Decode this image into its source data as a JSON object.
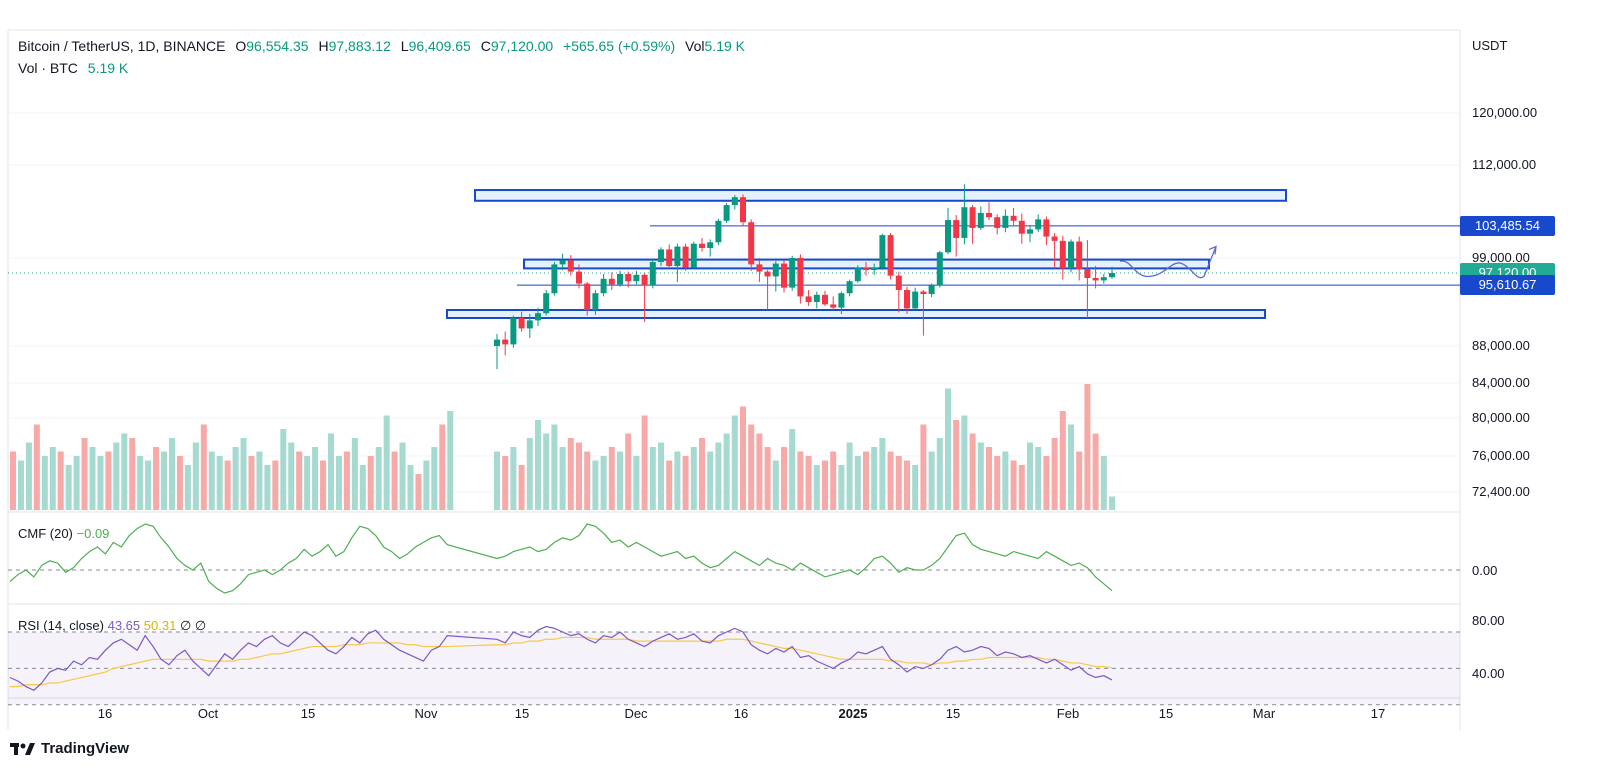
{
  "header": {
    "symbol": "Bitcoin / TetherUS, 1D, BINANCE",
    "open_label": "O",
    "open": "96,554.35",
    "high_label": "H",
    "high": "97,883.12",
    "low_label": "L",
    "low": "96,409.65",
    "close_label": "C",
    "close": "97,120.00",
    "change": "+565.65 (+0.59%)",
    "vol_label": "Vol",
    "vol": "5.19 K",
    "vol_btc_label": "Vol · BTC",
    "vol_btc": "5.19 K"
  },
  "currency": "USDT",
  "brand": "TradingView",
  "price_axis": [
    "120,000.00",
    "112,000.00",
    "99,000.00",
    "88,000.00",
    "84,000.00",
    "80,000.00",
    "76,000.00",
    "72,400.00"
  ],
  "price_tags": [
    {
      "value": "103,485.54",
      "color": "#1848cc"
    },
    {
      "value": "97,120.00",
      "color": "#22ab94"
    },
    {
      "value": "95,610.67",
      "color": "#1848cc"
    }
  ],
  "cmf": {
    "label": "CMF (20)",
    "value": "−0.09",
    "axis": "0.00"
  },
  "rsi": {
    "label": "RSI (14, close)",
    "value": "43.65",
    "ma": "50.31",
    "na1": "∅",
    "na2": "∅",
    "axis_hi": "80.00",
    "axis_lo": "40.00"
  },
  "x_axis": [
    "16",
    "Oct",
    "15",
    "Nov",
    "15",
    "Dec",
    "16",
    "2025",
    "15",
    "Feb",
    "15",
    "Mar",
    "17"
  ],
  "colors": {
    "up": "#089981",
    "down": "#f23645",
    "box": "#1848cc",
    "rsi": "#7e57c2",
    "rsi_ma": "#f7c948",
    "cmf": "#4caf50"
  },
  "chart_data": [
    {
      "type": "candlestick",
      "title": "Bitcoin / TetherUS, 1D, BINANCE",
      "ylabel": "USDT",
      "y_ticks": [
        120000,
        112000,
        99000,
        88000,
        84000,
        80000,
        76000,
        72400
      ],
      "last_close": 97120,
      "horizontal_lines": [
        103485.54,
        95610.67
      ],
      "zones": [
        {
          "low": 107000,
          "high": 108500
        },
        {
          "low": 97700,
          "high": 98800
        },
        {
          "low": 91500,
          "high": 92500
        }
      ],
      "candles_ohlc": [
        [
          88000,
          89500,
          85500,
          88800
        ],
        [
          88800,
          89800,
          87000,
          88200
        ],
        [
          88200,
          91800,
          87800,
          91500
        ],
        [
          91500,
          92300,
          89800,
          90200
        ],
        [
          90200,
          92000,
          89000,
          91200
        ],
        [
          91200,
          92800,
          90500,
          92100
        ],
        [
          92100,
          95000,
          91800,
          94600
        ],
        [
          94600,
          98500,
          94300,
          98200
        ],
        [
          98200,
          99600,
          97500,
          98700
        ],
        [
          98700,
          99400,
          96800,
          97300
        ],
        [
          97300,
          98200,
          95200,
          95800
        ],
        [
          95800,
          96000,
          91800,
          92500
        ],
        [
          92500,
          95000,
          91900,
          94600
        ],
        [
          94600,
          97000,
          94200,
          96400
        ],
        [
          96400,
          97200,
          95000,
          95700
        ],
        [
          95700,
          97400,
          95400,
          97000
        ],
        [
          97000,
          97300,
          95300,
          96100
        ],
        [
          96100,
          97400,
          95700,
          96900
        ],
        [
          96900,
          97100,
          91000,
          95600
        ],
        [
          95600,
          98800,
          95200,
          98500
        ],
        [
          98500,
          100500,
          98000,
          100200
        ],
        [
          100200,
          100900,
          97700,
          98000
        ],
        [
          98000,
          101000,
          96000,
          100600
        ],
        [
          100600,
          101000,
          97400,
          97800
        ],
        [
          97800,
          101300,
          97600,
          101000
        ],
        [
          101000,
          101800,
          99900,
          100400
        ],
        [
          100400,
          101600,
          99200,
          101200
        ],
        [
          101200,
          104500,
          100800,
          104200
        ],
        [
          104200,
          106700,
          103900,
          106400
        ],
        [
          106400,
          107800,
          105800,
          107500
        ],
        [
          107500,
          107900,
          103500,
          104000
        ],
        [
          104000,
          104400,
          97400,
          98200
        ],
        [
          98200,
          99000,
          96000,
          97300
        ],
        [
          97300,
          97500,
          92500,
          96700
        ],
        [
          96700,
          98600,
          94800,
          98300
        ],
        [
          98300,
          98700,
          94700,
          95300
        ],
        [
          95300,
          99300,
          94900,
          99000
        ],
        [
          99000,
          99500,
          93300,
          94200
        ],
        [
          94200,
          95000,
          93000,
          93500
        ],
        [
          93500,
          94800,
          92700,
          94400
        ],
        [
          94400,
          94900,
          93000,
          93200
        ],
        [
          93200,
          94200,
          92500,
          92800
        ],
        [
          92800,
          94800,
          92000,
          94600
        ],
        [
          94600,
          96300,
          94200,
          96100
        ],
        [
          96100,
          98100,
          95900,
          97800
        ],
        [
          97800,
          98500,
          96800,
          97500
        ],
        [
          97500,
          98300,
          96900,
          97800
        ],
        [
          97800,
          102400,
          97500,
          102200
        ],
        [
          102200,
          102500,
          96300,
          96800
        ],
        [
          96800,
          97300,
          92200,
          95000
        ],
        [
          95000,
          95400,
          92000,
          92700
        ],
        [
          92700,
          95300,
          92500,
          94800
        ],
        [
          94800,
          95000,
          89300,
          94500
        ],
        [
          94500,
          95800,
          94100,
          95600
        ],
        [
          95600,
          100000,
          95300,
          99800
        ],
        [
          99800,
          106000,
          99500,
          104300
        ],
        [
          104300,
          105000,
          99200,
          101800
        ],
        [
          101800,
          109300,
          100900,
          106100
        ],
        [
          106100,
          106400,
          101000,
          103200
        ],
        [
          103200,
          106200,
          102900,
          105300
        ],
        [
          105300,
          106800,
          104300,
          104700
        ],
        [
          104700,
          105100,
          102300,
          103200
        ],
        [
          103200,
          105800,
          102600,
          104900
        ],
        [
          104900,
          106000,
          103400,
          104200
        ],
        [
          104200,
          105200,
          101000,
          102400
        ],
        [
          102400,
          103600,
          101200,
          103000
        ],
        [
          103000,
          105100,
          102600,
          104400
        ],
        [
          104400,
          104800,
          100800,
          102000
        ],
        [
          102000,
          102500,
          97700,
          101400
        ],
        [
          101400,
          102100,
          96300,
          97700
        ],
        [
          97700,
          101600,
          97200,
          101300
        ],
        [
          101300,
          102000,
          96200,
          97600
        ],
        [
          97600,
          101500,
          91500,
          96500
        ],
        [
          96500,
          98000,
          95200,
          96200
        ],
        [
          96200,
          97000,
          95800,
          96600
        ],
        [
          96600,
          97900,
          96400,
          97120
        ]
      ],
      "volume": [
        1.3,
        1.2,
        1.4,
        1.0,
        1.6,
        2.0,
        1.7,
        1.9,
        1.4,
        1.6,
        1.5,
        1.3,
        1.1,
        1.2,
        1.4,
        1.3,
        1.7,
        1.2,
        2.1,
        1.4,
        1.5,
        1.1,
        1.3,
        1.2,
        1.4,
        1.6,
        1.3,
        1.5,
        1.7,
        2.1,
        2.3,
        1.9,
        1.7,
        1.4,
        1.1,
        1.4,
        1.8,
        1.3,
        1.2,
        1.0,
        1.1,
        1.3,
        1.0,
        1.5,
        1.2,
        1.3,
        1.4,
        1.6,
        1.3,
        1.2,
        1.1,
        1.0,
        1.9,
        1.3,
        1.6,
        2.7,
        2.0,
        2.1,
        1.7,
        1.5,
        1.4,
        1.2,
        1.3,
        1.1,
        1.0,
        1.5,
        1.4,
        1.2,
        1.6,
        2.2,
        1.9,
        1.3,
        2.8,
        1.7,
        1.2,
        0.3
      ],
      "cmf_values": [
        0.05,
        0.06,
        0.08,
        0.09,
        0.1,
        0.08,
        0.09,
        0.12,
        0.14,
        0.13,
        0.15,
        0.2,
        0.19,
        0.16,
        0.12,
        0.13,
        0.1,
        0.12,
        0.1,
        0.08,
        0.06,
        0.07,
        0.08,
        0.05,
        0.06,
        0.03,
        0.01,
        0.02,
        0.05,
        0.08,
        0.06,
        0.04,
        0.02,
        0.05,
        0.03,
        0.02,
        0.0,
        0.03,
        0.01,
        -0.01,
        -0.03,
        -0.02,
        -0.01,
        0.0,
        -0.02,
        0.01,
        0.05,
        0.06,
        0.03,
        -0.01,
        0.01,
        0.0,
        0.0,
        0.02,
        0.05,
        0.1,
        0.15,
        0.16,
        0.11,
        0.09,
        0.08,
        0.07,
        0.06,
        0.08,
        0.07,
        0.06,
        0.05,
        0.08,
        0.06,
        0.04,
        0.02,
        0.03,
        0.01,
        -0.03,
        -0.06,
        -0.09
      ],
      "rsi_values": [
        66,
        64,
        70,
        68,
        67,
        71,
        73,
        72,
        70,
        68,
        69,
        66,
        64,
        68,
        67,
        70,
        66,
        64,
        62,
        65,
        67,
        69,
        66,
        67,
        69,
        65,
        64,
        68,
        70,
        72,
        70,
        63,
        60,
        58,
        61,
        59,
        62,
        56,
        57,
        54,
        52,
        50,
        53,
        55,
        59,
        58,
        60,
        62,
        55,
        52,
        48,
        51,
        50,
        52,
        55,
        60,
        62,
        59,
        60,
        62,
        61,
        57,
        59,
        58,
        56,
        57,
        55,
        53,
        55,
        52,
        49,
        51,
        47,
        45,
        46,
        43.65
      ],
      "rsi_ma_values": [
        63,
        63,
        64,
        64,
        65,
        65,
        66,
        66,
        67,
        67,
        67,
        67,
        66,
        66,
        66,
        66,
        66,
        65,
        65,
        65,
        65,
        65,
        65,
        65,
        65,
        65,
        65,
        65,
        66,
        66,
        66,
        65,
        64,
        63,
        62,
        61,
        61,
        60,
        59,
        58,
        57,
        56,
        55,
        55,
        55,
        55,
        55,
        55,
        54,
        54,
        53,
        53,
        53,
        52,
        53,
        53,
        54,
        54,
        55,
        55,
        56,
        56,
        56,
        56,
        56,
        56,
        56,
        55,
        55,
        54,
        53,
        53,
        52,
        51,
        51,
        50.31
      ]
    }
  ]
}
